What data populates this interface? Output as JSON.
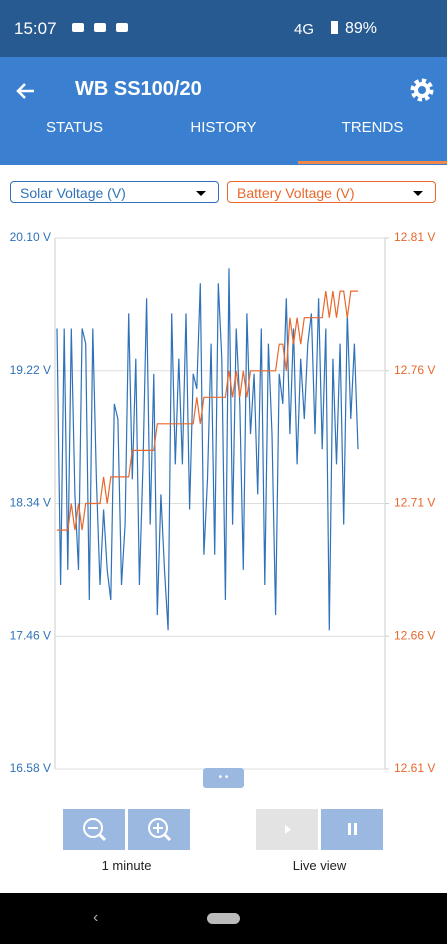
{
  "status_bar": {
    "time": "15:07",
    "network": "4G",
    "battery": "89%"
  },
  "header": {
    "title": "WB SS100/20"
  },
  "tabs": [
    "STATUS",
    "HISTORY",
    "TRENDS"
  ],
  "controls": {
    "zoom_label": "1 minute",
    "live_label": "Live view"
  },
  "chart_data": {
    "type": "line",
    "series": [
      {
        "name": "Solar Voltage (V)",
        "color": "#2f72b8",
        "values": [
          19.5,
          17.8,
          19.5,
          17.9,
          19.5,
          18.4,
          17.9,
          19.5,
          19.4,
          17.7,
          19.5,
          18.5,
          17.8,
          18.3,
          17.9,
          17.7,
          19.0,
          18.9,
          17.8,
          18.2,
          19.6,
          18.5,
          19.3,
          17.8,
          18.6,
          19.7,
          18.2,
          19.2,
          17.6,
          18.4,
          17.9,
          17.5,
          19.6,
          18.6,
          19.3,
          18.6,
          19.6,
          18.3,
          19.2,
          19.1,
          19.8,
          18.0,
          18.5,
          19.4,
          18.0,
          19.8,
          19.3,
          17.7,
          19.9,
          18.2,
          19.5,
          19.0,
          17.9,
          19.6,
          18.8,
          19.2,
          18.4,
          19.5,
          17.8,
          19.4,
          18.8,
          17.6,
          19.2,
          19.0,
          19.7,
          18.8,
          19.5,
          18.6,
          19.3,
          18.9,
          19.4,
          19.6,
          18.8,
          19.7,
          18.7,
          19.5,
          17.5,
          19.3,
          18.6,
          19.4,
          18.2,
          19.6,
          18.9,
          19.4,
          18.7
        ]
      },
      {
        "name": "Battery Voltage (V)",
        "color": "#e8682c",
        "axis": "y2",
        "values": [
          12.7,
          12.7,
          12.7,
          12.7,
          12.71,
          12.7,
          12.71,
          12.7,
          12.71,
          12.71,
          12.71,
          12.71,
          12.71,
          12.72,
          12.71,
          12.72,
          12.72,
          12.72,
          12.72,
          12.72,
          12.72,
          12.73,
          12.73,
          12.73,
          12.73,
          12.73,
          12.73,
          12.73,
          12.74,
          12.74,
          12.74,
          12.74,
          12.74,
          12.74,
          12.74,
          12.74,
          12.74,
          12.74,
          12.74,
          12.75,
          12.74,
          12.75,
          12.75,
          12.75,
          12.75,
          12.75,
          12.75,
          12.75,
          12.76,
          12.75,
          12.76,
          12.75,
          12.76,
          12.75,
          12.76,
          12.76,
          12.76,
          12.76,
          12.76,
          12.76,
          12.76,
          12.76,
          12.77,
          12.77,
          12.76,
          12.78,
          12.77,
          12.78,
          12.77,
          12.78,
          12.78,
          12.78,
          12.78,
          12.78,
          12.78,
          12.79,
          12.78,
          12.79,
          12.78,
          12.79,
          12.79,
          12.78,
          12.79,
          12.79,
          12.79
        ]
      }
    ],
    "ylim": [
      16.58,
      20.1
    ],
    "yticks": [
      {
        "value": 16.58,
        "label": "16.58 V"
      },
      {
        "value": 17.46,
        "label": "17.46 V"
      },
      {
        "value": 18.34,
        "label": "18.34 V"
      },
      {
        "value": 19.22,
        "label": "19.22 V"
      },
      {
        "value": 20.1,
        "label": "20.10 V"
      }
    ],
    "y2lim": [
      12.61,
      12.81
    ],
    "y2ticks": [
      {
        "value": 12.61,
        "label": "12.61 V"
      },
      {
        "value": 12.66,
        "label": "12.66 V"
      },
      {
        "value": 12.71,
        "label": "12.71 V"
      },
      {
        "value": 12.76,
        "label": "12.76 V"
      },
      {
        "value": 12.81,
        "label": "12.81 V"
      }
    ],
    "grid": true
  }
}
